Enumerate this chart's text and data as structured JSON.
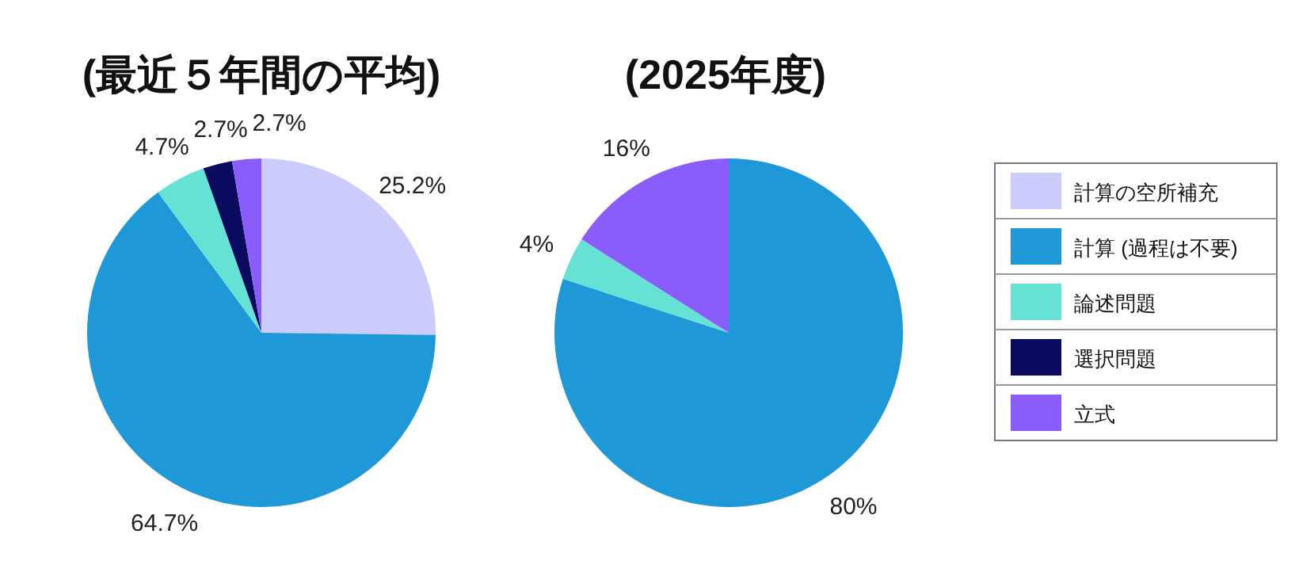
{
  "chart_data": [
    {
      "type": "pie",
      "title": "(最近５年間の平均)",
      "categories": [
        "計算の空所補充",
        "計算 (過程は不要)",
        "論述問題",
        "選択問題",
        "立式"
      ],
      "values": [
        25.2,
        64.7,
        4.7,
        2.7,
        2.7
      ],
      "colors": [
        "#ccccfc",
        "#1e98d6",
        "#66e2d4",
        "#0a0a5e",
        "#8a5cfc"
      ],
      "value_labels": [
        "25.2%",
        "64.7%",
        "4.7%",
        "2.7%",
        "2.7%"
      ],
      "legend": "right"
    },
    {
      "type": "pie",
      "title": "(2025年度)",
      "categories": [
        null,
        null,
        null
      ],
      "values": [
        80,
        4,
        16
      ],
      "colors": [
        "#1e98d6",
        "#66e2d4",
        "#8a5cfc"
      ],
      "value_labels": [
        "80%",
        "4%",
        "16%"
      ]
    }
  ]
}
